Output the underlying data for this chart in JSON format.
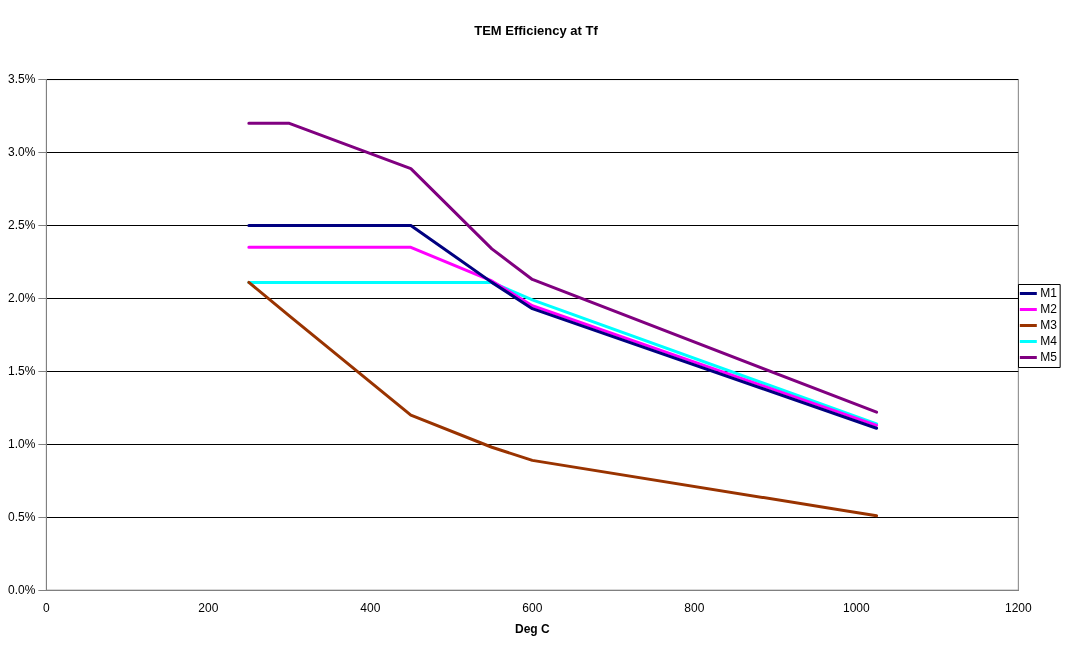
{
  "chart_data": {
    "type": "line",
    "title": "TEM Efficiency at Tf",
    "xlabel": "Deg C",
    "x": [
      250,
      300,
      450,
      550,
      600,
      1025
    ],
    "series": [
      {
        "name": "M1",
        "color": "#000080",
        "values": [
          2.5,
          2.5,
          2.5,
          2.11,
          1.93,
          1.11
        ]
      },
      {
        "name": "M2",
        "color": "#ff00ff",
        "values": [
          2.35,
          2.35,
          2.35,
          2.12,
          1.95,
          1.13
        ]
      },
      {
        "name": "M3",
        "color": "#993300",
        "values": [
          2.11,
          1.88,
          1.2,
          0.98,
          0.89,
          0.51
        ]
      },
      {
        "name": "M4",
        "color": "#00ffff",
        "values": [
          2.11,
          2.11,
          2.11,
          2.11,
          1.99,
          1.14
        ]
      },
      {
        "name": "M5",
        "color": "#800080",
        "values": [
          3.2,
          3.2,
          2.89,
          2.34,
          2.13,
          1.22
        ]
      }
    ],
    "xlim": [
      0,
      1200
    ],
    "xticks": [
      0,
      200,
      400,
      600,
      800,
      1000,
      1200
    ],
    "ylim": [
      0,
      3.5
    ],
    "yticks": [
      {
        "value": 0,
        "label": "0.0%"
      },
      {
        "value": 0.5,
        "label": "0.5%"
      },
      {
        "value": 1,
        "label": "1.0%"
      },
      {
        "value": 1.5,
        "label": "1.5%"
      },
      {
        "value": 2,
        "label": "2.0%"
      },
      {
        "value": 2.5,
        "label": "2.5%"
      },
      {
        "value": 3,
        "label": "3.0%"
      },
      {
        "value": 3.5,
        "label": "3.5%"
      }
    ],
    "grid": "y",
    "legend": "right",
    "marker": "none",
    "line_style": "solid"
  }
}
